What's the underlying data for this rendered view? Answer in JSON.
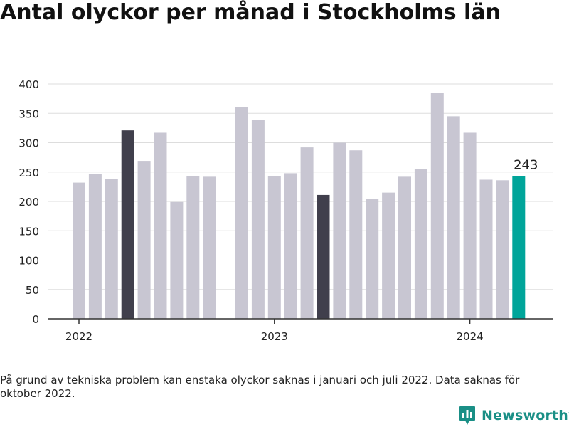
{
  "title": "Antal olyckor per månad i Stockholms län",
  "footnote": "På grund av tekniska problem kan enstaka olyckor saknas i januari och juli 2022. Data saknas för oktober 2022.",
  "brand": {
    "name": "Newsworthy",
    "icon": "newsworthy-logo-icon"
  },
  "colors": {
    "default_bar": "#c8c6d2",
    "highlight_bar": "#403f4c",
    "latest_bar": "#00a59a",
    "grid": "#dddddd",
    "axis": "#333333",
    "text": "#222222",
    "brand": "#1a8f86"
  },
  "chart_data": {
    "type": "bar",
    "title": "Antal olyckor per månad i Stockholms län",
    "xlabel": "",
    "ylabel": "",
    "ylim": [
      0,
      400
    ],
    "yticks": [
      0,
      50,
      100,
      150,
      200,
      250,
      300,
      350,
      400
    ],
    "grid": true,
    "legend": "none",
    "x_tick_labels": [
      {
        "label": "2022",
        "date": "2022-01"
      },
      {
        "label": "2023",
        "date": "2023-01"
      },
      {
        "label": "2024",
        "date": "2024-01"
      }
    ],
    "bars": [
      {
        "date": "2022-01",
        "value": 232,
        "style": "default"
      },
      {
        "date": "2022-02",
        "value": 247,
        "style": "default"
      },
      {
        "date": "2022-03",
        "value": 238,
        "style": "default"
      },
      {
        "date": "2022-04",
        "value": 321,
        "style": "highlight"
      },
      {
        "date": "2022-05",
        "value": 269,
        "style": "default"
      },
      {
        "date": "2022-06",
        "value": 317,
        "style": "default"
      },
      {
        "date": "2022-07",
        "value": 199,
        "style": "default"
      },
      {
        "date": "2022-08",
        "value": 243,
        "style": "default"
      },
      {
        "date": "2022-09",
        "value": 242,
        "style": "default"
      },
      {
        "date": "2022-10",
        "value": null,
        "style": "default"
      },
      {
        "date": "2022-11",
        "value": 361,
        "style": "default"
      },
      {
        "date": "2022-12",
        "value": 339,
        "style": "default"
      },
      {
        "date": "2023-01",
        "value": 243,
        "style": "default"
      },
      {
        "date": "2023-02",
        "value": 248,
        "style": "default"
      },
      {
        "date": "2023-03",
        "value": 292,
        "style": "default"
      },
      {
        "date": "2023-04",
        "value": 211,
        "style": "highlight"
      },
      {
        "date": "2023-05",
        "value": 300,
        "style": "default"
      },
      {
        "date": "2023-06",
        "value": 287,
        "style": "default"
      },
      {
        "date": "2023-07",
        "value": 204,
        "style": "default"
      },
      {
        "date": "2023-08",
        "value": 215,
        "style": "default"
      },
      {
        "date": "2023-09",
        "value": 242,
        "style": "default"
      },
      {
        "date": "2023-10",
        "value": 255,
        "style": "default"
      },
      {
        "date": "2023-11",
        "value": 385,
        "style": "default"
      },
      {
        "date": "2023-12",
        "value": 345,
        "style": "default"
      },
      {
        "date": "2024-01",
        "value": 317,
        "style": "default"
      },
      {
        "date": "2024-02",
        "value": 237,
        "style": "default"
      },
      {
        "date": "2024-03",
        "value": 236,
        "style": "default"
      },
      {
        "date": "2024-04",
        "value": 243,
        "style": "latest",
        "data_label": "243"
      }
    ]
  }
}
